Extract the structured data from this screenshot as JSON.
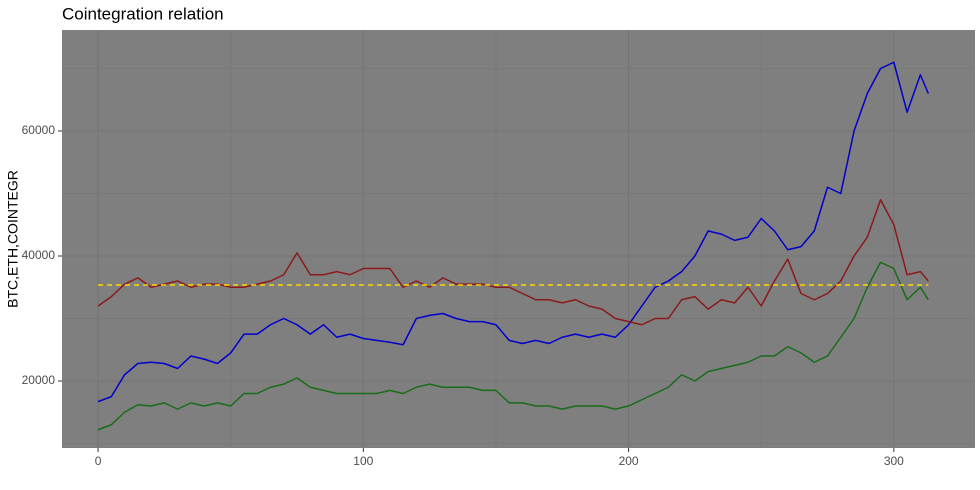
{
  "chart_data": {
    "type": "line",
    "title": "Cointegration relation",
    "y_label": "BTC,ETH,COINTEGR",
    "xlim": [
      -13.6,
      330.6
    ],
    "ylim": [
      9280,
      76160
    ],
    "xticks": [
      0,
      100,
      200,
      300
    ],
    "yticks": [
      20000,
      40000,
      60000
    ],
    "grid": true,
    "minor_grid": true,
    "panel_color": "#7f7f7f",
    "grid_color": "#747474",
    "x": [
      0,
      5,
      10,
      15,
      20,
      25,
      30,
      35,
      40,
      45,
      50,
      55,
      60,
      65,
      70,
      75,
      80,
      85,
      90,
      95,
      100,
      105,
      110,
      115,
      120,
      125,
      130,
      135,
      140,
      145,
      150,
      155,
      160,
      165,
      170,
      175,
      180,
      185,
      190,
      195,
      200,
      205,
      210,
      215,
      220,
      225,
      230,
      235,
      240,
      245,
      250,
      255,
      260,
      265,
      270,
      275,
      280,
      285,
      290,
      295,
      300,
      305,
      310,
      313
    ],
    "series": [
      {
        "color": "#0000cd",
        "values": [
          16700,
          17500,
          21000,
          22800,
          23000,
          22800,
          22000,
          24000,
          23500,
          22800,
          24500,
          27500,
          27500,
          29000,
          30000,
          29000,
          27500,
          29000,
          27000,
          27500,
          26800,
          26500,
          26200,
          25800,
          30000,
          30500,
          30800,
          30000,
          29500,
          29500,
          29000,
          26500,
          26000,
          26500,
          26000,
          27000,
          27500,
          27000,
          27500,
          27000,
          29000,
          32000,
          35000,
          36000,
          37500,
          40000,
          44000,
          43500,
          42500,
          43000,
          46000,
          44000,
          41000,
          41500,
          44000,
          51000,
          50000,
          60000,
          66000,
          70000,
          71000,
          63000,
          69000,
          66000
        ]
      },
      {
        "color": "#8b1a1a",
        "values": [
          32000,
          33500,
          35500,
          36500,
          35000,
          35500,
          36000,
          35000,
          35500,
          35500,
          35000,
          35000,
          35500,
          36000,
          37000,
          40500,
          37000,
          37000,
          37500,
          37000,
          38000,
          38000,
          38000,
          35000,
          36000,
          35000,
          36500,
          35500,
          35500,
          35500,
          35000,
          35000,
          34000,
          33000,
          33000,
          32500,
          33000,
          32000,
          31500,
          30000,
          29500,
          29000,
          30000,
          30000,
          33000,
          33500,
          31500,
          33000,
          32500,
          35000,
          32000,
          36000,
          39500,
          34000,
          33000,
          34000,
          36000,
          40000,
          43000,
          49000,
          45000,
          37000,
          37500,
          36000
        ]
      },
      {
        "color": "#1a6b1a",
        "values": [
          12200,
          13000,
          15000,
          16200,
          16000,
          16500,
          15500,
          16500,
          16000,
          16500,
          16000,
          18000,
          18000,
          19000,
          19500,
          20500,
          19000,
          18500,
          18000,
          18000,
          18000,
          18000,
          18500,
          18000,
          19000,
          19500,
          19000,
          19000,
          19000,
          18500,
          18500,
          16500,
          16500,
          16000,
          16000,
          15500,
          16000,
          16000,
          16000,
          15500,
          16000,
          17000,
          18000,
          19000,
          21000,
          20000,
          21500,
          22000,
          22500,
          23000,
          24000,
          24000,
          25500,
          24500,
          23000,
          24000,
          27000,
          30000,
          35000,
          39000,
          38000,
          33000,
          35000,
          33000
        ]
      }
    ],
    "hline": {
      "value": 35360,
      "color": "#ffd700"
    }
  }
}
